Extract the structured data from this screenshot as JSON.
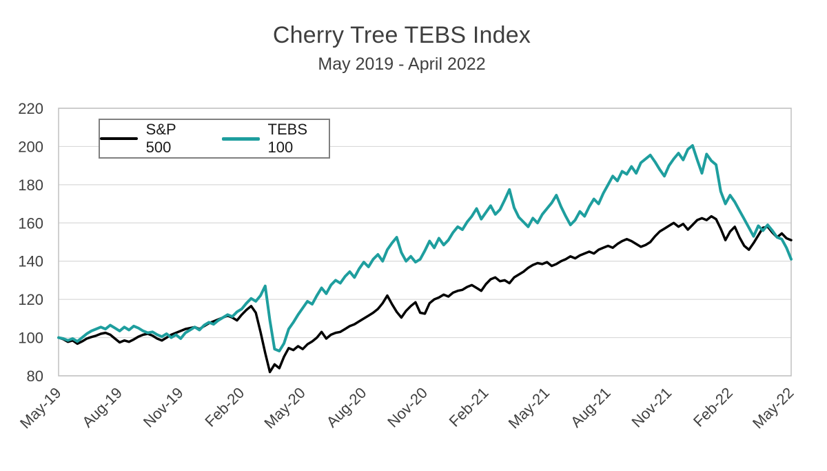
{
  "colors": {
    "background": "#ffffff",
    "grid": "#d9d9d9",
    "plot_border": "#bfbfbf",
    "axis_text": "#404040",
    "title_text": "#3f3f3f",
    "legend_border": "#7f7f7f",
    "sp500_line": "#000000",
    "tebs_line": "#1e9e9e"
  },
  "chart_data": {
    "type": "line",
    "title": "Cherry Tree TEBS Index",
    "subtitle": "May 2019 - April 2022",
    "x_frequency": "weekly",
    "x_range": [
      "May-19",
      "May-22"
    ],
    "x_tick_labels": [
      "May-19",
      "Aug-19",
      "Nov-19",
      "Feb-20",
      "May-20",
      "Aug-20",
      "Nov-20",
      "Feb-21",
      "May-21",
      "Aug-21",
      "Nov-21",
      "Feb-22",
      "May-22"
    ],
    "ylim": [
      80,
      220
    ],
    "yticks": [
      80,
      100,
      120,
      140,
      160,
      180,
      200,
      220
    ],
    "grid": "horizontal",
    "legend_position": "inside-top-left",
    "series": [
      {
        "name": "S&P 500",
        "color": "#000000",
        "stroke_width": 3.5,
        "values": [
          100,
          99.2,
          97.8,
          98.5,
          96.8,
          98,
          99.5,
          100.3,
          101,
          102,
          102.5,
          101.5,
          99.5,
          97.5,
          98.5,
          97.8,
          99,
          100.5,
          101.5,
          102,
          101,
          99.5,
          98.5,
          100,
          101.5,
          102.5,
          103.5,
          104.5,
          105,
          105.5,
          104.5,
          106,
          107.5,
          108.5,
          109.5,
          110.5,
          111.5,
          110.5,
          109,
          112,
          114.5,
          116.5,
          113,
          103,
          92,
          82,
          86,
          84,
          90,
          94.5,
          93.5,
          95.5,
          94,
          96.5,
          98,
          100,
          103,
          99.5,
          101.5,
          102.5,
          103,
          104.5,
          106,
          107,
          108.5,
          110,
          111.5,
          113,
          115,
          118,
          122,
          117.5,
          113.5,
          110.5,
          114,
          116.5,
          118.5,
          113,
          112.5,
          118,
          120,
          121,
          122.5,
          121.5,
          123.5,
          124.5,
          125,
          126.5,
          127.5,
          126,
          124.5,
          128,
          130.5,
          131.5,
          129.5,
          130,
          128.5,
          131.5,
          133,
          134.5,
          136.5,
          138,
          139,
          138.5,
          139.5,
          137.5,
          138.5,
          140,
          141,
          142.5,
          141.5,
          143,
          144,
          145,
          144,
          146,
          147,
          148,
          147,
          149,
          150.5,
          151.5,
          150.5,
          149,
          147.5,
          148.5,
          150,
          153,
          155.5,
          157,
          158.5,
          160,
          158,
          159.5,
          156.5,
          159,
          161.5,
          162.5,
          161.5,
          163.5,
          162,
          157,
          151,
          155.5,
          158,
          152.5,
          148,
          146,
          149.5,
          153.5,
          157.5,
          158,
          155,
          152.5,
          154.5,
          152,
          151
        ]
      },
      {
        "name": "TEBS 100",
        "color": "#1e9e9e",
        "stroke_width": 4,
        "values": [
          100,
          99.5,
          98.5,
          99.5,
          98,
          100,
          102,
          103.5,
          104.5,
          105.5,
          104.5,
          106.5,
          105,
          103.5,
          105.5,
          104,
          106,
          105,
          103.5,
          102.5,
          103,
          101.5,
          100.5,
          102,
          100,
          101.5,
          99.5,
          102.5,
          104,
          105.5,
          104,
          106.5,
          108,
          107,
          109,
          110.5,
          112,
          111,
          113.5,
          115,
          118,
          120.5,
          119,
          122,
          127,
          109,
          94,
          93,
          97,
          104.5,
          108,
          112,
          115.5,
          119,
          117.5,
          122,
          126,
          123,
          127.5,
          130,
          128.5,
          132,
          134.5,
          131.5,
          136,
          139.5,
          137,
          141,
          143.5,
          140,
          146,
          149.5,
          152.5,
          144.5,
          140,
          142.5,
          139.5,
          141,
          145.5,
          150.5,
          147,
          152,
          148.5,
          151,
          155,
          158,
          156.5,
          160.5,
          163.5,
          167.5,
          162,
          165.5,
          169,
          164.5,
          167,
          172,
          177.5,
          168,
          163,
          160.5,
          158,
          162.5,
          160,
          164.5,
          167.5,
          170.5,
          174.5,
          168.5,
          163.5,
          159,
          161.5,
          166,
          163.5,
          168.5,
          172.5,
          170,
          175.5,
          180,
          184.5,
          182,
          187,
          185.5,
          189.5,
          186,
          191.5,
          193.5,
          195.5,
          192,
          188,
          184.5,
          190,
          193.5,
          196.5,
          193,
          198.5,
          200.5,
          193,
          186,
          196,
          192.5,
          190.5,
          176.5,
          170,
          174.5,
          171,
          166.5,
          162,
          157.5,
          153,
          158.5,
          156,
          159,
          156,
          152.5,
          151.5,
          147,
          141
        ]
      }
    ]
  }
}
